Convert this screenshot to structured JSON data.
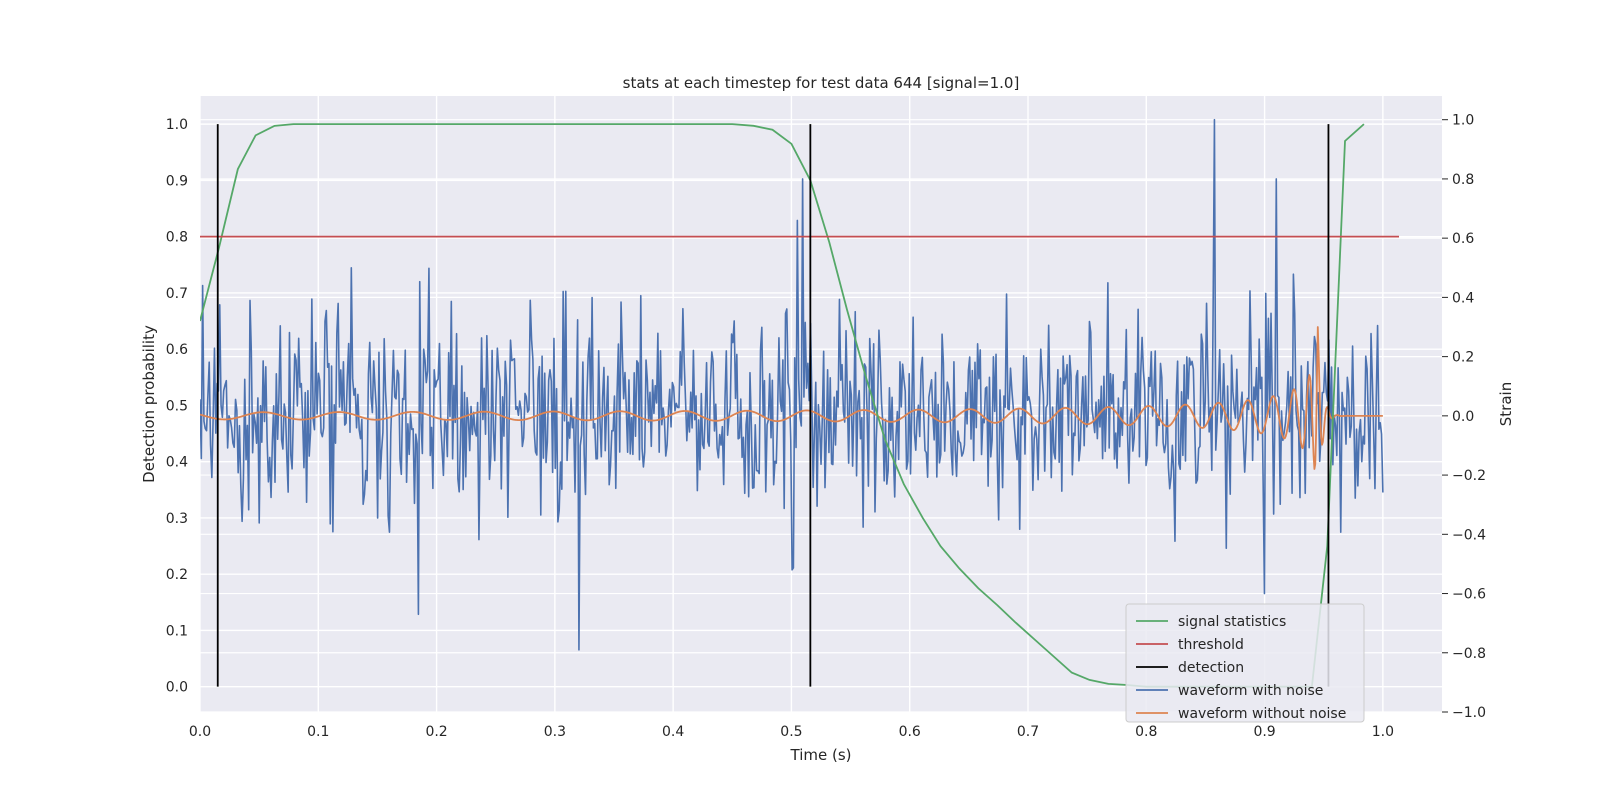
{
  "chart_data": {
    "type": "line",
    "title": "stats at each timestep for test data 644 [signal=1.0]",
    "xlabel": "Time (s)",
    "ylabel": "Detection probability",
    "y2label": "Strain",
    "xlim": [
      0.0,
      1.05
    ],
    "ylim": [
      -0.045,
      1.05
    ],
    "y2lim": [
      -1.0,
      1.08
    ],
    "xticks": [
      "0.0",
      "0.1",
      "0.2",
      "0.3",
      "0.4",
      "0.5",
      "0.6",
      "0.7",
      "0.8",
      "0.9",
      "1.0"
    ],
    "yticks": [
      "0.0",
      "0.1",
      "0.2",
      "0.3",
      "0.4",
      "0.5",
      "0.6",
      "0.7",
      "0.8",
      "0.9",
      "1.0"
    ],
    "y2ticks": [
      "−1.0",
      "−0.8",
      "−0.6",
      "−0.4",
      "−0.2",
      "0.0",
      "0.2",
      "0.4",
      "0.6",
      "0.8",
      "1.0"
    ],
    "grid": true,
    "legend_position": "bottom-right",
    "colors": {
      "background": "#eaeaf2",
      "grid": "#ffffff",
      "signal": "#55a868",
      "threshold": "#c44e52",
      "detection": "#000000",
      "noisy": "#4c72b0",
      "clean": "#dd8452"
    },
    "series": [
      {
        "name": "signal statistics",
        "axis": "left",
        "x": [
          0.0,
          0.016,
          0.032,
          0.047,
          0.063,
          0.079,
          0.095,
          0.11,
          0.2,
          0.3,
          0.4,
          0.45,
          0.468,
          0.484,
          0.5,
          0.516,
          0.532,
          0.547,
          0.563,
          0.579,
          0.595,
          0.611,
          0.626,
          0.642,
          0.658,
          0.674,
          0.689,
          0.705,
          0.721,
          0.737,
          0.752,
          0.768,
          0.784,
          0.8,
          0.9,
          0.94,
          0.953,
          0.968,
          0.984
        ],
        "y": [
          0.65,
          0.78,
          0.92,
          0.98,
          0.997,
          1.0,
          1.0,
          1.0,
          1.0,
          1.0,
          1.0,
          1.0,
          0.997,
          0.99,
          0.965,
          0.9,
          0.79,
          0.67,
          0.55,
          0.44,
          0.36,
          0.3,
          0.25,
          0.21,
          0.175,
          0.145,
          0.115,
          0.085,
          0.055,
          0.025,
          0.012,
          0.005,
          0.003,
          0.0,
          0.0,
          0.0,
          0.25,
          0.97,
          1.0
        ]
      },
      {
        "name": "threshold",
        "axis": "left",
        "x": [
          0.0,
          1.05
        ],
        "y": [
          0.8,
          0.8
        ]
      },
      {
        "name": "detection",
        "axis": "left",
        "segments": [
          {
            "x": 0.015,
            "y": [
              0.0,
              1.0
            ]
          },
          {
            "x": 0.516,
            "y": [
              0.0,
              1.0
            ]
          },
          {
            "x": 0.954,
            "y": [
              0.0,
              1.0
            ]
          }
        ]
      },
      {
        "name": "waveform with noise",
        "axis": "right",
        "x_range": [
          0.0,
          1.0
        ],
        "points": 900,
        "std": 0.17,
        "peaks": [
          {
            "x": 0.858,
            "y": 1.0
          },
          {
            "x": 0.91,
            "y": 0.8
          },
          {
            "x": 0.505,
            "y": 0.66
          },
          {
            "x": 0.51,
            "y": 0.8
          },
          {
            "x": 0.5,
            "y": -0.52
          },
          {
            "x": 0.32,
            "y": -0.79
          },
          {
            "x": 0.185,
            "y": -0.67
          },
          {
            "x": 0.128,
            "y": 0.5
          },
          {
            "x": 0.9,
            "y": -0.6
          }
        ]
      },
      {
        "name": "waveform without noise",
        "axis": "right",
        "x_range": [
          0.0,
          1.0
        ],
        "merger_time": 0.945,
        "ringdown_end": 0.955,
        "amp_start": 0.012,
        "amp_peak": 0.3
      }
    ]
  }
}
